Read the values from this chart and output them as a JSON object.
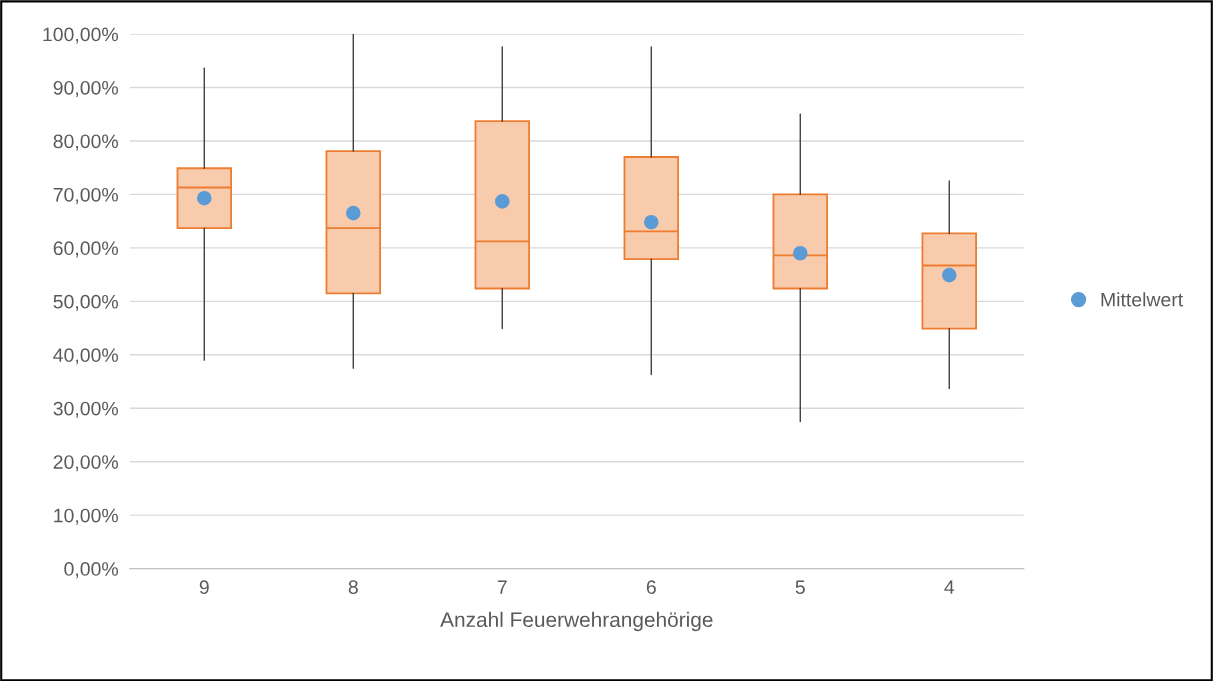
{
  "chart_data": {
    "type": "box",
    "xlabel": "Anzahl Feuerwehrangehörige",
    "categories": [
      "9",
      "8",
      "7",
      "6",
      "5",
      "4"
    ],
    "series": [
      {
        "color": "#f8cbad",
        "boxes": [
          {
            "low": 39.0,
            "q1": 63.7,
            "median": 71.3,
            "q3": 74.9,
            "high": 93.6
          },
          {
            "low": 37.5,
            "q1": 51.5,
            "median": 63.7,
            "q3": 78.1,
            "high": 100.0
          },
          {
            "low": 44.9,
            "q1": 52.4,
            "median": 61.2,
            "q3": 83.7,
            "high": 97.6
          },
          {
            "low": 36.3,
            "q1": 57.9,
            "median": 63.1,
            "q3": 77.0,
            "high": 97.6
          },
          {
            "low": 27.5,
            "q1": 52.4,
            "median": 58.6,
            "q3": 70.0,
            "high": 85.0
          },
          {
            "low": 33.7,
            "q1": 44.9,
            "median": 56.7,
            "q3": 62.7,
            "high": 72.5
          }
        ]
      },
      {
        "type": "scatter",
        "name": "Mittelwert",
        "color": "#5b9bd5",
        "x": [
          "9",
          "8",
          "7",
          "6",
          "5",
          "4"
        ],
        "values": [
          69.3,
          66.5,
          68.7,
          64.8,
          59.0,
          54.9
        ]
      }
    ],
    "ylim": [
      0,
      100
    ],
    "yticks": [
      {
        "value": 0,
        "label": "0,00%"
      },
      {
        "value": 10,
        "label": "10,00%"
      },
      {
        "value": 20,
        "label": "20,00%"
      },
      {
        "value": 30,
        "label": "30,00%"
      },
      {
        "value": 40,
        "label": "40,00%"
      },
      {
        "value": 50,
        "label": "50,00%"
      },
      {
        "value": 60,
        "label": "60,00%"
      },
      {
        "value": 70,
        "label": "70,00%"
      },
      {
        "value": 80,
        "label": "80,00%"
      },
      {
        "value": 90,
        "label": "90,00%"
      },
      {
        "value": 100,
        "label": "100,00%"
      }
    ],
    "grid": "y",
    "legend": "right",
    "marker": "circle"
  }
}
